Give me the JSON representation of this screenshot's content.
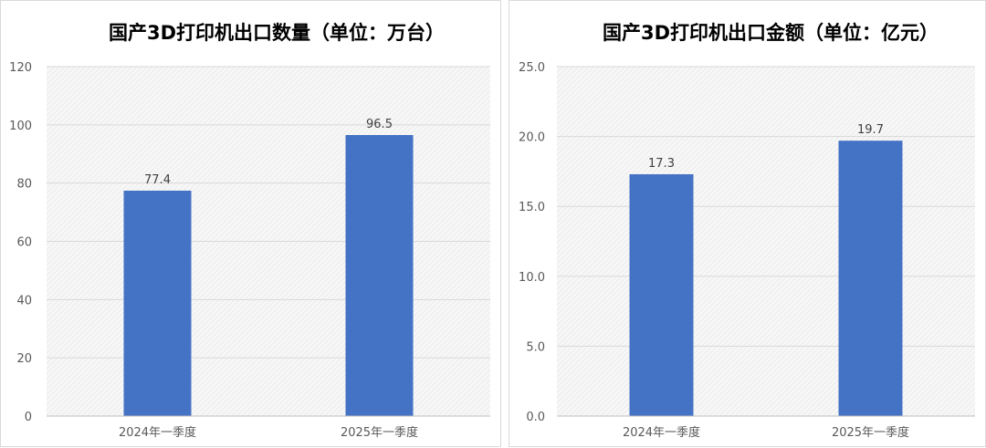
{
  "colors": {
    "bar": "#4472C4",
    "grid": "#d9d9d9",
    "axis_text": "#595959"
  },
  "chart_data": [
    {
      "type": "bar",
      "title": "国产3D打印机出口数量（单位：万台）",
      "categories": [
        "2024年一季度",
        "2025年一季度"
      ],
      "values": [
        77.4,
        96.5
      ],
      "data_labels": [
        "77.4",
        "96.5"
      ],
      "ylim": [
        0,
        120
      ],
      "yticks": [
        "0",
        "20",
        "40",
        "60",
        "80",
        "100",
        "120"
      ],
      "xlabel": "",
      "ylabel": "",
      "grid": true,
      "legend": "none"
    },
    {
      "type": "bar",
      "title": "国产3D打印机出口金额（单位：亿元）",
      "categories": [
        "2024年一季度",
        "2025年一季度"
      ],
      "values": [
        17.3,
        19.7
      ],
      "data_labels": [
        "17.3",
        "19.7"
      ],
      "ylim": [
        0,
        25
      ],
      "yticks": [
        "0.0",
        "5.0",
        "10.0",
        "15.0",
        "20.0",
        "25.0"
      ],
      "xlabel": "",
      "ylabel": "",
      "grid": true,
      "legend": "none"
    }
  ]
}
